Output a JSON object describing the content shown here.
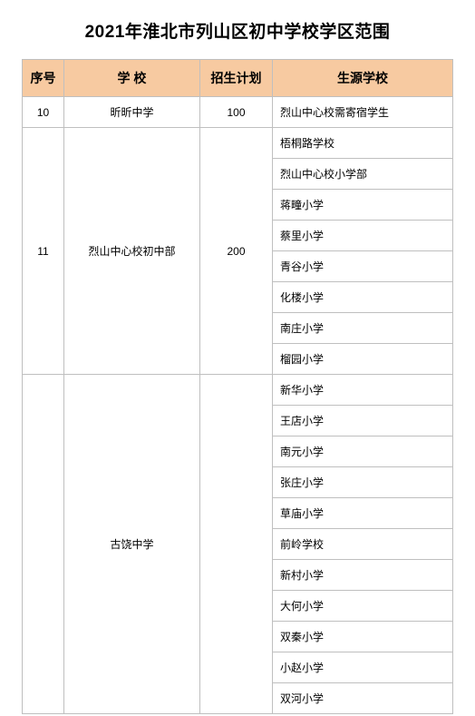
{
  "title": "2021年淮北市列山区初中学校学区范围",
  "colors": {
    "header_bg": "#f7caa1",
    "border": "#bfbfbf",
    "text": "#000000",
    "bg": "#ffffff"
  },
  "headers": {
    "seq": "序号",
    "school": "学   校",
    "plan": "招生计划",
    "source": "生源学校"
  },
  "groups": [
    {
      "seq": "10",
      "school": "昕昕中学",
      "plan": "100",
      "sources": [
        "烈山中心校需寄宿学生"
      ]
    },
    {
      "seq": "11",
      "school": "烈山中心校初中部",
      "plan": "200",
      "sources": [
        "梧桐路学校",
        "烈山中心校小学部",
        "蒋疃小学",
        "蔡里小学",
        "青谷小学",
        "化楼小学",
        "南庄小学",
        "榴园小学"
      ]
    },
    {
      "seq": "",
      "school": "古饶中学",
      "plan": "",
      "sources": [
        "新华小学",
        "王店小学",
        "南元小学",
        "张庄小学",
        "草庙小学",
        "前岭学校",
        "新村小学",
        "大何小学",
        "双秦小学",
        "小赵小学",
        "双河小学"
      ]
    }
  ]
}
